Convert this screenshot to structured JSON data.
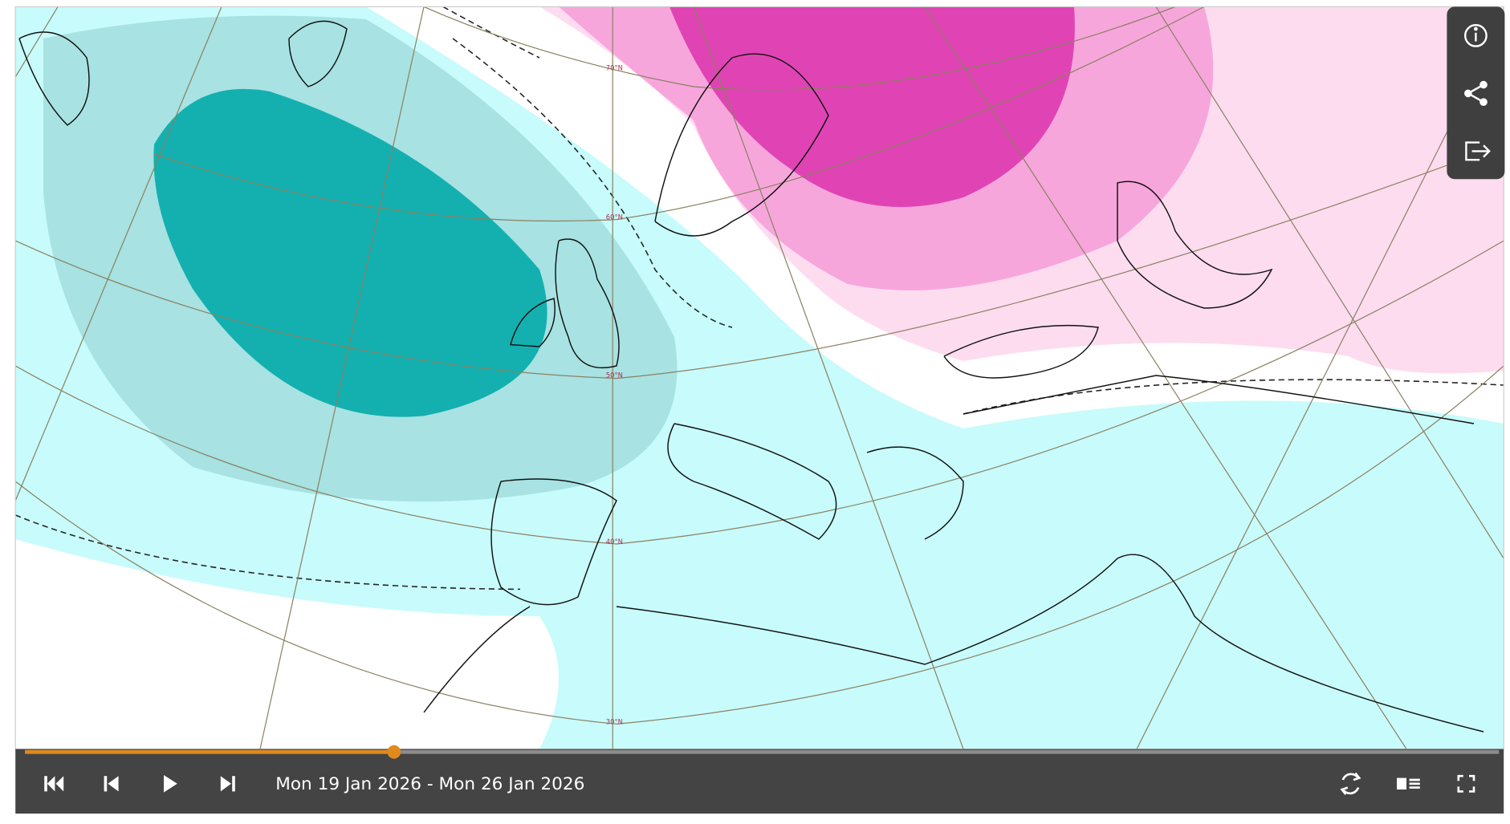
{
  "map": {
    "latitude_labels": [
      "70°N",
      "60°N",
      "50°N",
      "40°N",
      "30°N"
    ]
  },
  "player": {
    "date_range": "Mon 19 Jan 2026 - Mon 26 Jan 2026"
  }
}
